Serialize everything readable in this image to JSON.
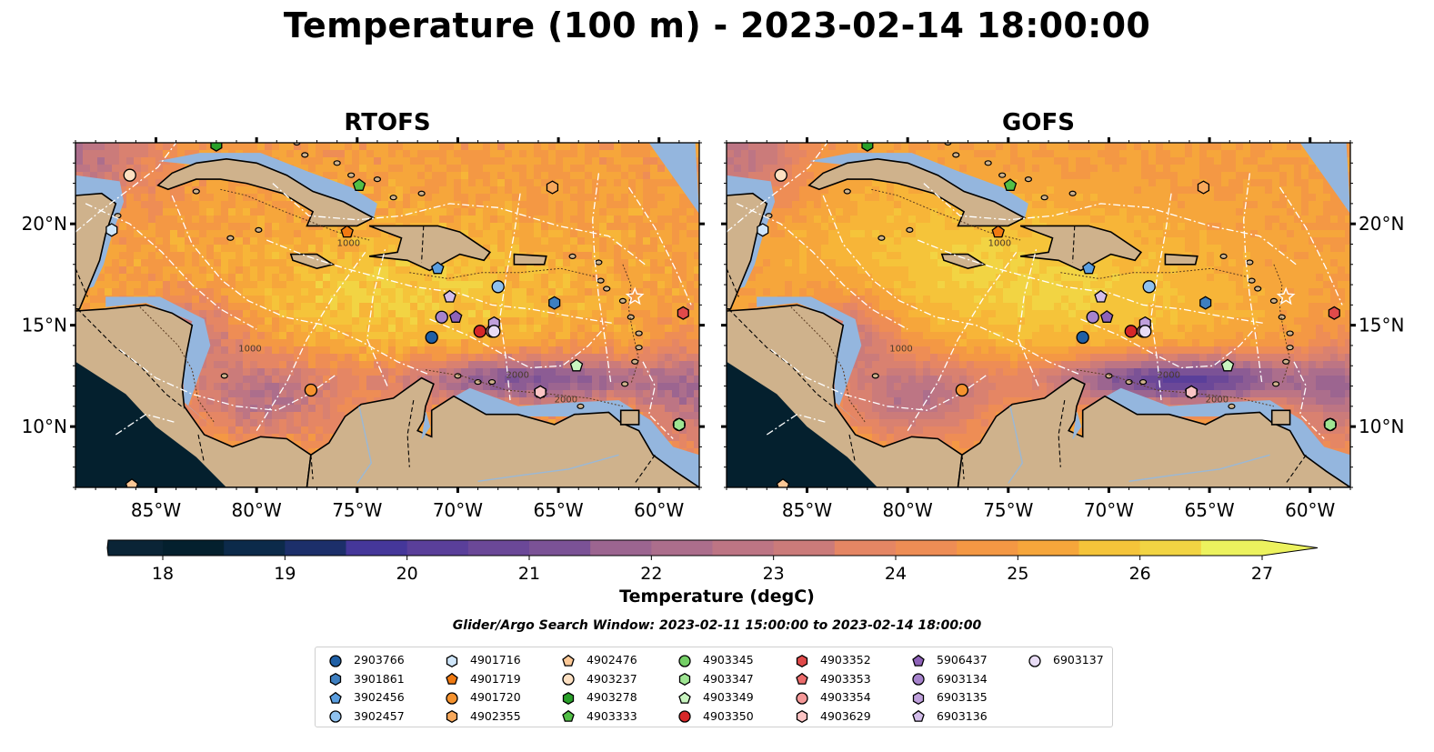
{
  "title": "Temperature (100 m) - 2023-02-14 18:00:00",
  "panels": [
    {
      "title": "RTOFS"
    },
    {
      "title": "GOFS"
    }
  ],
  "axes": {
    "x_ticks": [
      "85°W",
      "80°W",
      "75°W",
      "70°W",
      "65°W",
      "60°W"
    ],
    "y_ticks": [
      "20°N",
      "15°N",
      "10°N"
    ]
  },
  "colorbar": {
    "label": "Temperature (degC)",
    "ticks": [
      "18",
      "19",
      "20",
      "21",
      "22",
      "23",
      "24",
      "25",
      "26",
      "27"
    ],
    "colors": [
      "#04202e",
      "#0c2a4a",
      "#1c2f6a",
      "#2f308a",
      "#45379a",
      "#5a3f9a",
      "#6b4898",
      "#7b5296",
      "#8c5c94",
      "#9c6590",
      "#ac6e8c",
      "#bd7584",
      "#cb7b7a",
      "#d98170",
      "#e58664",
      "#ee8d55",
      "#f49844",
      "#f6a63b",
      "#f7b538",
      "#f5c43a",
      "#f2d443",
      "#ecf25e"
    ],
    "min_color": "#02161f",
    "max_color": "#ecf25e"
  },
  "map_colors": {
    "land": "#cfb28c",
    "shelf_water": "#94b6de",
    "deep_ocean_bg_rtofs": "#f08c4c",
    "deep_ocean_bg_gofs": "#f29a4a"
  },
  "contour_labels": [
    "1000",
    "2000"
  ],
  "search_window": "Glider/Argo Search Window: 2023-02-11 15:00:00 to 2023-02-14 18:00:00",
  "legend": [
    {
      "id": "2903766",
      "marker": "circle",
      "color": "#1f5fa5"
    },
    {
      "id": "3901861",
      "marker": "hexagon",
      "color": "#3e7fc0"
    },
    {
      "id": "3902456",
      "marker": "pentagon",
      "color": "#5a9ee0"
    },
    {
      "id": "3902457",
      "marker": "circle",
      "color": "#8fc1ee"
    },
    {
      "id": "4901716",
      "marker": "hexagon",
      "color": "#cfe6fa"
    },
    {
      "id": "4901719",
      "marker": "pentagon",
      "color": "#f07a12"
    },
    {
      "id": "4901720",
      "marker": "circle",
      "color": "#f5922e"
    },
    {
      "id": "4902355",
      "marker": "hexagon",
      "color": "#f8a95c"
    },
    {
      "id": "4902476",
      "marker": "pentagon",
      "color": "#fbc896"
    },
    {
      "id": "4903237",
      "marker": "circle",
      "color": "#fde0c2"
    },
    {
      "id": "4903278",
      "marker": "hexagon",
      "color": "#2aa02a"
    },
    {
      "id": "4903333",
      "marker": "pentagon",
      "color": "#52bf46"
    },
    {
      "id": "4903345",
      "marker": "circle",
      "color": "#74cf66"
    },
    {
      "id": "4903347",
      "marker": "hexagon",
      "color": "#9ee592"
    },
    {
      "id": "4903349",
      "marker": "pentagon",
      "color": "#c9f5c0"
    },
    {
      "id": "4903350",
      "marker": "circle",
      "color": "#d62728"
    },
    {
      "id": "4903352",
      "marker": "hexagon",
      "color": "#e04a4a"
    },
    {
      "id": "4903353",
      "marker": "pentagon",
      "color": "#ec6c6c"
    },
    {
      "id": "4903354",
      "marker": "circle",
      "color": "#f59898"
    },
    {
      "id": "4903629",
      "marker": "hexagon",
      "color": "#fbc4c4"
    },
    {
      "id": "5906437",
      "marker": "pentagon",
      "color": "#8e62b8"
    },
    {
      "id": "6903134",
      "marker": "circle",
      "color": "#a683cc"
    },
    {
      "id": "6903135",
      "marker": "hexagon",
      "color": "#bfa0dc"
    },
    {
      "id": "6903136",
      "marker": "pentagon",
      "color": "#d3bdea"
    },
    {
      "id": "6903137",
      "marker": "circle",
      "color": "#e8dcf5"
    }
  ],
  "floats": [
    {
      "id": "2903766",
      "lon": -71.3,
      "lat": 14.4
    },
    {
      "id": "3901861",
      "lon": -65.2,
      "lat": 16.1
    },
    {
      "id": "3902456",
      "lon": -71.0,
      "lat": 17.8
    },
    {
      "id": "3902457",
      "lon": -68.0,
      "lat": 16.9
    },
    {
      "id": "4901716",
      "lon": -87.2,
      "lat": 19.7
    },
    {
      "id": "4901719",
      "lon": -75.5,
      "lat": 19.6
    },
    {
      "id": "4901720",
      "lon": -77.3,
      "lat": 11.8
    },
    {
      "id": "4902355",
      "lon": -65.3,
      "lat": 21.8
    },
    {
      "id": "4902476",
      "lon": -86.2,
      "lat": 7.1
    },
    {
      "id": "4903237",
      "lon": -86.3,
      "lat": 22.4
    },
    {
      "id": "4903278",
      "lon": -82.0,
      "lat": 23.9
    },
    {
      "id": "4903333",
      "lon": -74.9,
      "lat": 21.9
    },
    {
      "id": "4903345",
      "lon": -59.0,
      "lat": 10.1
    },
    {
      "id": "4903347",
      "lon": -59.0,
      "lat": 10.1
    },
    {
      "id": "4903349",
      "lon": -64.1,
      "lat": 13.0
    },
    {
      "id": "4903350",
      "lon": -68.9,
      "lat": 14.7
    },
    {
      "id": "4903352",
      "lon": -58.8,
      "lat": 15.6
    },
    {
      "id": "4903353",
      "lon": -65.9,
      "lat": 11.7
    },
    {
      "id": "4903354",
      "lon": -68.3,
      "lat": 14.7
    },
    {
      "id": "4903629",
      "lon": -65.9,
      "lat": 11.7
    },
    {
      "id": "5906437",
      "lon": -70.1,
      "lat": 15.4
    },
    {
      "id": "6903134",
      "lon": -70.8,
      "lat": 15.4
    },
    {
      "id": "6903135",
      "lon": -68.2,
      "lat": 15.1
    },
    {
      "id": "6903136",
      "lon": -70.4,
      "lat": 16.4
    },
    {
      "id": "6903137",
      "lon": -68.2,
      "lat": 14.7
    }
  ]
}
